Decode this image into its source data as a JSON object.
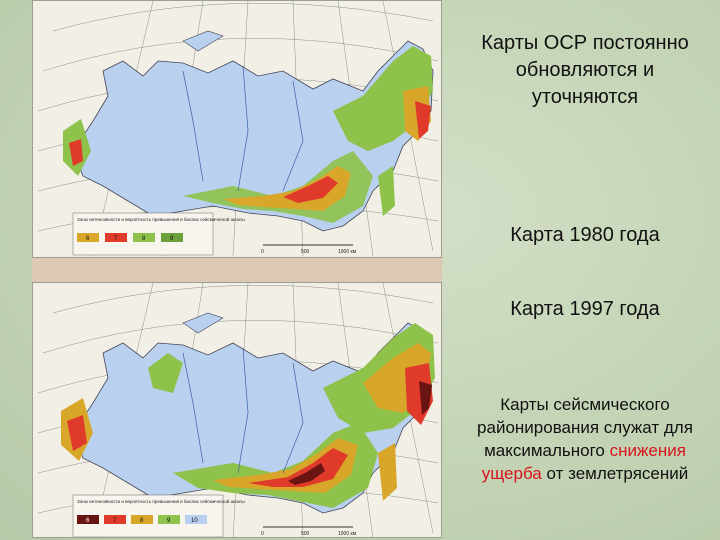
{
  "slide": {
    "title_lines": [
      "Карты ОСР постоянно",
      "обновляются и",
      "уточняются"
    ],
    "map1_caption": "Карта 1980 года",
    "map2_caption": "Карта 1997 года",
    "summary": {
      "part1": "Карты сейсмического районирования служат для максимального",
      "highlight": "снижения ущерба",
      "part2": "от землетрясений"
    },
    "colors": {
      "background": "#c8d6bb",
      "highlight": "#d8141c",
      "land_low": "#b9d0ef",
      "zone_6": "#f0e060",
      "zone_7": "#8ec24a",
      "zone_8": "#d8a72a",
      "zone_9": "#e03a2a",
      "zone_10": "#6a1414"
    }
  },
  "map1": {
    "legend_title": "Зоны интенсивности и вероятность превышения в баллах сейсмической шкалы",
    "legend_values": [
      "6",
      "7",
      "8",
      "9"
    ],
    "scale_labels": [
      "0",
      "500",
      "1000 км"
    ]
  },
  "map2": {
    "legend_title": "Зоны интенсивности и вероятность превышения в баллах сейсмической шкалы",
    "legend_values": [
      "6",
      "7",
      "8",
      "9",
      "10"
    ],
    "scale_labels": [
      "0",
      "500",
      "1000 км"
    ]
  }
}
